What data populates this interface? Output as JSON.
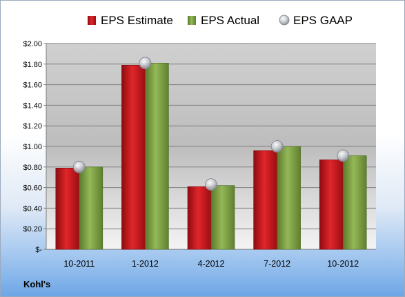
{
  "company": "Kohl's",
  "colors": {
    "estimate": "#c0161b",
    "actual": "#7ea043",
    "gaap": "#b9bcc4"
  },
  "chart_data": {
    "type": "bar",
    "categories": [
      "10-2011",
      "1-2012",
      "4-2012",
      "7-2012",
      "10-2012"
    ],
    "series": [
      {
        "name": "EPS Estimate",
        "values": [
          0.79,
          1.79,
          0.61,
          0.96,
          0.87
        ]
      },
      {
        "name": "EPS Actual",
        "values": [
          0.8,
          1.81,
          0.62,
          1.0,
          0.91
        ]
      },
      {
        "name": "EPS GAAP",
        "type": "scatter",
        "values": [
          0.8,
          1.81,
          0.63,
          1.0,
          0.91
        ]
      }
    ],
    "yticks": [
      "$-",
      "$0.20",
      "$0.40",
      "$0.60",
      "$0.80",
      "$1.00",
      "$1.20",
      "$1.40",
      "$1.60",
      "$1.80",
      "$2.00"
    ],
    "ylim": [
      0,
      2.0
    ],
    "grid": true,
    "legend": "top",
    "title": "",
    "xlabel": "",
    "ylabel": ""
  }
}
